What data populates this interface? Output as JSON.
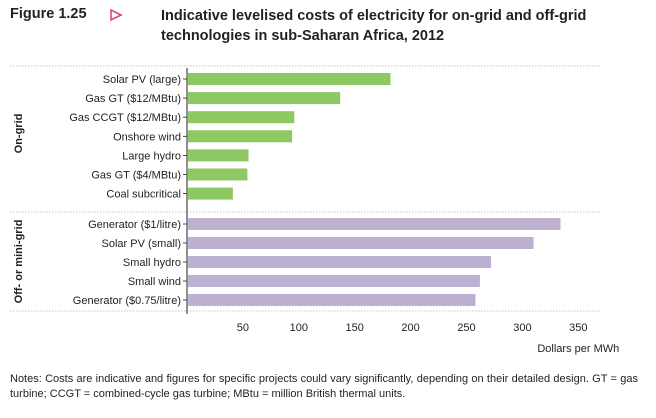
{
  "figure": {
    "number": "Figure 1.25",
    "title": "Indicative levelised costs of electricity for on-grid and off-grid technologies in sub-Saharan Africa, 2012",
    "notes": "Notes: Costs are indicative and figures for specific projects could vary significantly, depending on their detailed design. GT = gas turbine; CCGT = combined-cycle gas turbine; MBtu = million British thermal units."
  },
  "colors": {
    "on_grid": "#8dc863",
    "off_grid": "#bdb1d1",
    "accent": "#e0457b",
    "text": "#231f20"
  },
  "chart_data": {
    "type": "bar",
    "orientation": "horizontal",
    "xlabel": "Dollars per MWh",
    "xlim": [
      0,
      350
    ],
    "xticks": [
      50,
      100,
      150,
      200,
      250,
      300,
      350
    ],
    "grid": false,
    "groups": [
      {
        "name": "On-grid",
        "categories": [
          "Solar PV (large)",
          "Gas GT ($12/MBtu)",
          "Gas CCGT ($12/MBtu)",
          "Onshore wind",
          "Large hydro",
          "Gas GT ($4/MBtu)",
          "Coal subcritical"
        ],
        "values": [
          182,
          137,
          96,
          94,
          55,
          54,
          41
        ]
      },
      {
        "name": "Off- or mini-grid",
        "categories": [
          "Generator ($1/litre)",
          "Solar PV (small)",
          "Small hydro",
          "Small wind",
          "Generator ($0.75/litre)"
        ],
        "values": [
          334,
          310,
          272,
          262,
          258
        ]
      }
    ]
  }
}
